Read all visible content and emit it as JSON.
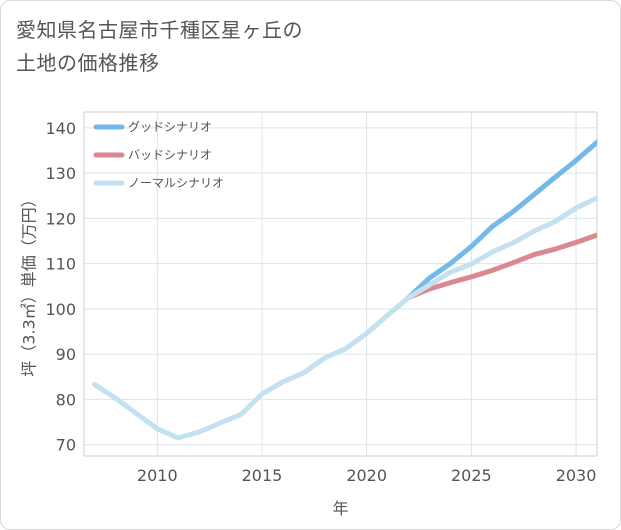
{
  "chart_data": {
    "type": "line",
    "title_line1": "愛知県名古屋市千種区星ヶ丘の",
    "title_line2": "土地の価格推移",
    "xlabel": "年",
    "ylabel": "坪（3.3㎡）単価（万円）",
    "xlim": [
      2006.5,
      2031
    ],
    "ylim": [
      67.5,
      143.5
    ],
    "xticks": [
      2010,
      2015,
      2020,
      2025,
      2030
    ],
    "yticks": [
      70,
      80,
      90,
      100,
      110,
      120,
      130,
      140
    ],
    "series": [
      {
        "name": "グッドシナリオ",
        "color": "#74b9ea",
        "x": [
          2022,
          2023,
          2024,
          2025,
          2026,
          2027,
          2028,
          2029,
          2030,
          2031
        ],
        "values": [
          102.5,
          106.8,
          110.0,
          113.8,
          118.2,
          121.5,
          125.3,
          129.1,
          132.8,
          136.8
        ]
      },
      {
        "name": "バッドシナリオ",
        "color": "#dc8890",
        "x": [
          2022,
          2023,
          2024,
          2025,
          2026,
          2027,
          2028,
          2029,
          2030,
          2031
        ],
        "values": [
          102.5,
          104.4,
          105.8,
          107.1,
          108.5,
          110.2,
          112.0,
          113.2,
          114.7,
          116.3
        ]
      },
      {
        "name": "ノーマルシナリオ",
        "color": "#c3e1f0",
        "x": [
          2007,
          2008,
          2009,
          2010,
          2011,
          2012,
          2013,
          2014,
          2015,
          2016,
          2017,
          2018,
          2019,
          2020,
          2021,
          2022,
          2023,
          2024,
          2025,
          2026,
          2027,
          2028,
          2029,
          2030,
          2031
        ],
        "values": [
          83.3,
          80.3,
          76.9,
          73.5,
          71.5,
          72.8,
          74.8,
          76.7,
          81.2,
          83.9,
          85.9,
          89.2,
          91.2,
          94.6,
          98.6,
          102.5,
          105.3,
          108.1,
          109.9,
          112.6,
          114.6,
          117.2,
          119.3,
          122.3,
          124.5
        ]
      }
    ]
  }
}
